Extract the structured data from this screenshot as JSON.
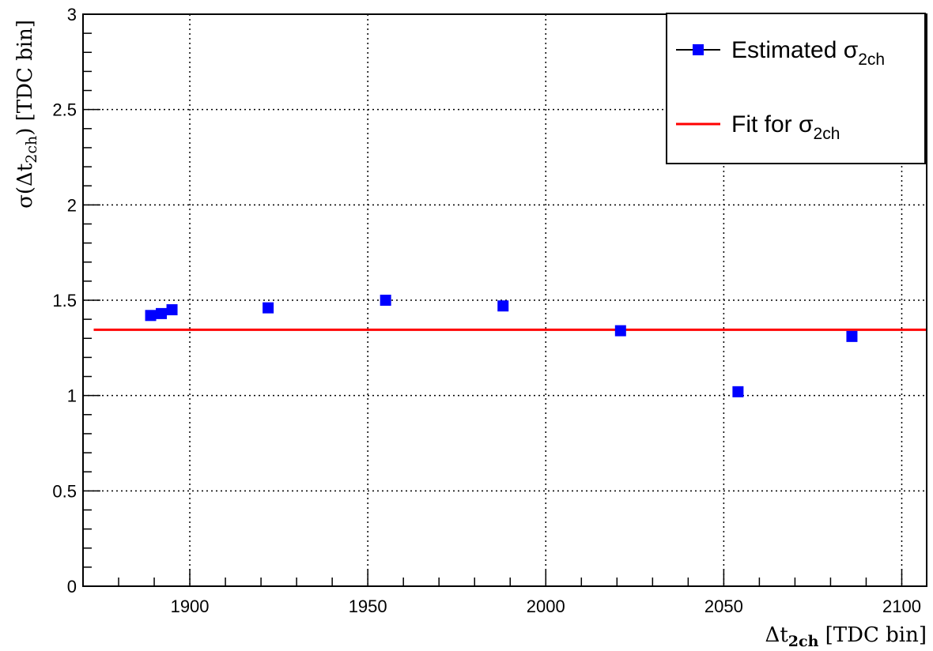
{
  "chart_data": {
    "type": "scatter",
    "xlabel": "Δt",
    "xlabel_sub": "2ch",
    "xlabel_unit": " [TDC bin]",
    "ylabel_prefix": "σ(Δt",
    "ylabel_sub": "2ch",
    "ylabel_suffix": ") [TDC bin]",
    "xlim": [
      1870,
      2107
    ],
    "ylim": [
      0,
      3
    ],
    "x_ticks": [
      1900,
      1950,
      2000,
      2050,
      2100
    ],
    "y_ticks": [
      0,
      0.5,
      1,
      1.5,
      2,
      2.5,
      3
    ],
    "y_tick_labels": [
      "0",
      "0.5",
      "1",
      "1.5",
      "2",
      "2.5",
      "3"
    ],
    "x_minor_step": 10,
    "y_minor_step": 0.1,
    "grid": true,
    "legend_position": "top-right",
    "series": [
      {
        "name": "Estimated σ",
        "name_sub": "2ch",
        "kind": "points",
        "color": "#0000ff",
        "x": [
          1889,
          1892,
          1895,
          1922,
          1955,
          1988,
          2021,
          2054,
          2086
        ],
        "y": [
          1.42,
          1.43,
          1.45,
          1.46,
          1.5,
          1.47,
          1.34,
          1.02,
          1.31
        ]
      },
      {
        "name": "Fit for σ",
        "name_sub": "2ch",
        "kind": "constant_fit",
        "color": "#ff0000",
        "value": 1.345,
        "x_range": [
          1873,
          2107
        ]
      }
    ]
  }
}
